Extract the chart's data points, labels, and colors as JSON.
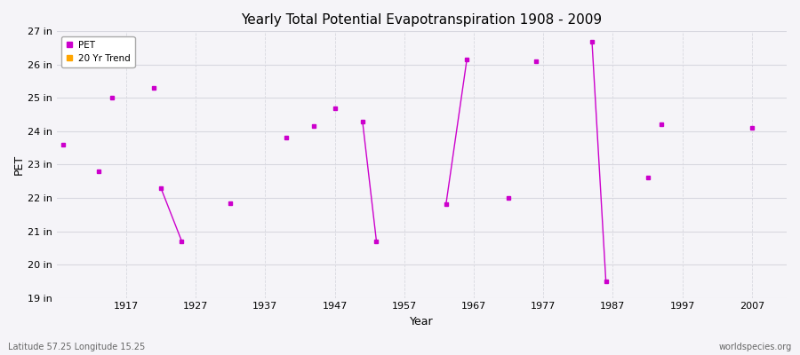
{
  "title": "Yearly Total Potential Evapotranspiration 1908 - 2009",
  "xlabel": "Year",
  "ylabel": "PET",
  "background_color": "#f5f4f8",
  "plot_bg_color": "#f5f4f8",
  "grid_color": "#d8d8e0",
  "pet_color": "#cc00cc",
  "trend_color": "#ffa500",
  "ylim": [
    19,
    27
  ],
  "ytick_labels": [
    "19 in",
    "20 in",
    "21 in",
    "22 in",
    "23 in",
    "24 in",
    "25 in",
    "26 in",
    "27 in"
  ],
  "ytick_values": [
    19,
    20,
    21,
    22,
    23,
    24,
    25,
    26,
    27
  ],
  "xlim": [
    1907,
    2012
  ],
  "xtick_values": [
    1917,
    1927,
    1937,
    1947,
    1957,
    1967,
    1977,
    1987,
    1997,
    2007
  ],
  "footer_left": "Latitude 57.25 Longitude 15.25",
  "footer_right": "worldspecies.org",
  "pet_scatter": [
    [
      1908,
      23.6
    ],
    [
      1913,
      22.8
    ],
    [
      1915,
      25.0
    ],
    [
      1921,
      25.3
    ],
    [
      1932,
      21.85
    ],
    [
      1940,
      23.8
    ],
    [
      1944,
      24.15
    ],
    [
      1947,
      24.7
    ],
    [
      1972,
      22.0
    ],
    [
      1976,
      26.1
    ],
    [
      1992,
      22.6
    ],
    [
      1994,
      24.2
    ],
    [
      2007,
      24.1
    ]
  ],
  "trend_segments": [
    [
      [
        1922,
        22.3
      ],
      [
        1925,
        20.7
      ]
    ],
    [
      [
        1951,
        24.3
      ],
      [
        1953,
        20.7
      ]
    ],
    [
      [
        1963,
        21.8
      ],
      [
        1966,
        26.15
      ]
    ],
    [
      [
        1984,
        26.7
      ],
      [
        1986,
        19.5
      ]
    ]
  ]
}
